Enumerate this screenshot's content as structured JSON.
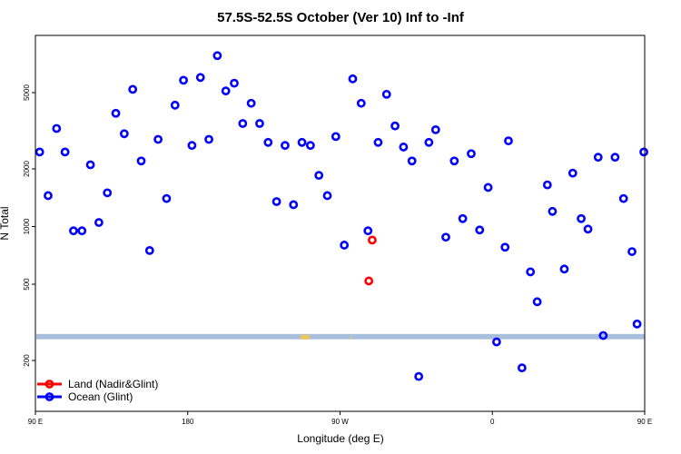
{
  "chart_data": {
    "type": "scatter",
    "title": "57.5S-52.5S October (Ver 10)   Inf to -Inf",
    "xlabel": "Longitude (deg E)",
    "ylabel": "N Total",
    "x_scale": "longitude_degrees_east",
    "xlim": [
      90,
      450
    ],
    "y_scale": "log",
    "ylim": [
      130,
      10000
    ],
    "x_ticks": [
      {
        "value": 90,
        "label": "90 E"
      },
      {
        "value": 180,
        "label": "180"
      },
      {
        "value": 270,
        "label": "90 W"
      },
      {
        "value": 360,
        "label": "0"
      },
      {
        "value": 450,
        "label": "90 E"
      },
      {
        "value": 540,
        "label": "180"
      }
    ],
    "y_ticks": [
      {
        "value": 200,
        "label": "200"
      },
      {
        "value": 500,
        "label": "500"
      },
      {
        "value": 1000,
        "label": "1000"
      },
      {
        "value": 2000,
        "label": "2000"
      },
      {
        "value": 5000,
        "label": "5000"
      }
    ],
    "grid": false,
    "legend_position": "bottom-left",
    "series": [
      {
        "name": "Land (Nadir&Glint)",
        "color": "#ff0000",
        "points": [
          {
            "x": 289,
            "y": 850
          },
          {
            "x": 287,
            "y": 520
          }
        ]
      },
      {
        "name": "Ocean (Glint)",
        "color": "#0000ff",
        "points": [
          {
            "x": 92.5,
            "y": 2450
          },
          {
            "x": 97.5,
            "y": 1450
          },
          {
            "x": 102.5,
            "y": 3250
          },
          {
            "x": 107.5,
            "y": 2450
          },
          {
            "x": 112.5,
            "y": 950
          },
          {
            "x": 117.5,
            "y": 950
          },
          {
            "x": 122.5,
            "y": 2100
          },
          {
            "x": 127.5,
            "y": 1050
          },
          {
            "x": 132.5,
            "y": 1500
          },
          {
            "x": 137.5,
            "y": 3900
          },
          {
            "x": 142.5,
            "y": 3050
          },
          {
            "x": 147.5,
            "y": 5200
          },
          {
            "x": 152.5,
            "y": 2200
          },
          {
            "x": 157.5,
            "y": 750
          },
          {
            "x": 162.5,
            "y": 2850
          },
          {
            "x": 167.5,
            "y": 1400
          },
          {
            "x": 172.5,
            "y": 4300
          },
          {
            "x": 177.5,
            "y": 5800
          },
          {
            "x": 182.5,
            "y": 2650
          },
          {
            "x": 187.5,
            "y": 6000
          },
          {
            "x": 192.5,
            "y": 2850
          },
          {
            "x": 197.5,
            "y": 7800
          },
          {
            "x": 202.5,
            "y": 5100
          },
          {
            "x": 207.5,
            "y": 5600
          },
          {
            "x": 212.5,
            "y": 3450
          },
          {
            "x": 217.5,
            "y": 4400
          },
          {
            "x": 222.5,
            "y": 3450
          },
          {
            "x": 227.5,
            "y": 2750
          },
          {
            "x": 232.5,
            "y": 1350
          },
          {
            "x": 237.5,
            "y": 2650
          },
          {
            "x": 242.5,
            "y": 1300
          },
          {
            "x": 247.5,
            "y": 2750
          },
          {
            "x": 252.5,
            "y": 2650
          },
          {
            "x": 257.5,
            "y": 1850
          },
          {
            "x": 262.5,
            "y": 1450
          },
          {
            "x": 267.5,
            "y": 2950
          },
          {
            "x": 272.5,
            "y": 800
          },
          {
            "x": 277.5,
            "y": 5900
          },
          {
            "x": 282.5,
            "y": 4400
          },
          {
            "x": 286.5,
            "y": 950
          },
          {
            "x": 292.5,
            "y": 2750
          },
          {
            "x": 297.5,
            "y": 4900
          },
          {
            "x": 302.5,
            "y": 3350
          },
          {
            "x": 307.5,
            "y": 2600
          },
          {
            "x": 312.5,
            "y": 2200
          },
          {
            "x": 316.5,
            "y": 165
          },
          {
            "x": 322.5,
            "y": 2750
          },
          {
            "x": 326.5,
            "y": 3200
          },
          {
            "x": 332.5,
            "y": 880
          },
          {
            "x": 337.5,
            "y": 2200
          },
          {
            "x": 342.5,
            "y": 1100
          },
          {
            "x": 347.5,
            "y": 2400
          },
          {
            "x": 352.5,
            "y": 960
          },
          {
            "x": 357.5,
            "y": 1600
          },
          {
            "x": 362.5,
            "y": 250
          },
          {
            "x": 367.5,
            "y": 780
          },
          {
            "x": 369.5,
            "y": 2800
          },
          {
            "x": 377.5,
            "y": 183
          },
          {
            "x": 382.5,
            "y": 580
          },
          {
            "x": 386.5,
            "y": 405
          },
          {
            "x": 392.5,
            "y": 1650
          },
          {
            "x": 395.5,
            "y": 1200
          },
          {
            "x": 402.5,
            "y": 600
          },
          {
            "x": 407.5,
            "y": 1900
          },
          {
            "x": 412.5,
            "y": 1100
          },
          {
            "x": 416.5,
            "y": 970
          },
          {
            "x": 422.5,
            "y": 2300
          },
          {
            "x": 425.5,
            "y": 270
          },
          {
            "x": 432.5,
            "y": 2300
          },
          {
            "x": 437.5,
            "y": 1400
          },
          {
            "x": 442.5,
            "y": 740
          },
          {
            "x": 445.5,
            "y": 310
          },
          {
            "x": 449.5,
            "y": 2450
          }
        ]
      }
    ]
  },
  "map_strip": {
    "color": "#a7bedd",
    "land_color": "#f5c84a",
    "y_top": 275,
    "y_bottom": 258
  }
}
